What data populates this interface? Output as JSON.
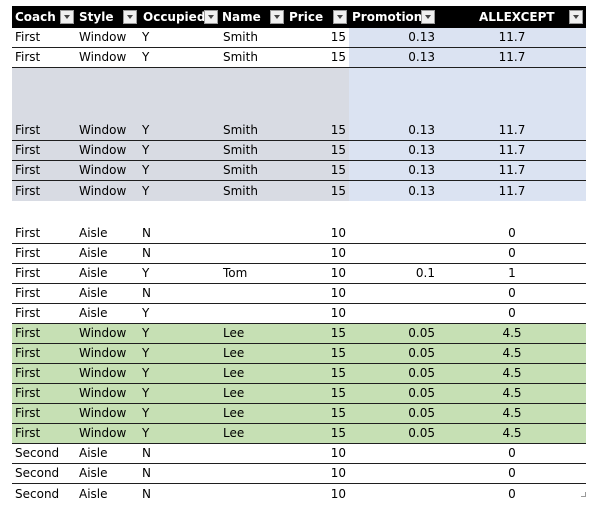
{
  "columns": [
    {
      "label": "Coach"
    },
    {
      "label": "Style"
    },
    {
      "label": "Occupied"
    },
    {
      "label": "Name"
    },
    {
      "label": "Price"
    },
    {
      "label": "Promotion"
    },
    {
      "label": "ALLEXCEPT"
    }
  ],
  "colors": {
    "header_bg": "#000000",
    "header_text": "#ffffff",
    "blue_fill": "#dbe3f2",
    "gray_fill": "#d8dbe3",
    "green_fill": "#c6e0b4",
    "white_fill": "#ffffff",
    "row_border": "#1f1f1f"
  },
  "rows": [
    {
      "fill": "blue",
      "cells": [
        "First",
        "Window",
        "Y",
        "Smith",
        "15",
        "0.13",
        "11.7"
      ]
    },
    {
      "fill": "blue",
      "cells": [
        "First",
        "Window",
        "Y",
        "Smith",
        "15",
        "0.13",
        "11.7"
      ]
    },
    {
      "fill": "blue",
      "cells": [
        "First",
        "Window",
        "Y",
        "Smith",
        "15",
        "0.13",
        "11.7"
      ]
    },
    {
      "fill": "blue",
      "cells": [
        "First",
        "Window",
        "Y",
        "Smith",
        "15",
        "0.13",
        "11.7"
      ]
    },
    {
      "fill": "blue",
      "cells": [
        "First",
        "Window",
        "Y",
        "Smith",
        "15",
        "0.13",
        "11.7"
      ]
    },
    {
      "fill": "blue",
      "cells": [
        "First",
        "Window",
        "Y",
        "Smith",
        "15",
        "0.13",
        "11.7"
      ]
    },
    {
      "fill": "white",
      "cells": [
        "First",
        "Aisle",
        "N",
        "",
        "10",
        "",
        "0"
      ]
    },
    {
      "fill": "white",
      "cells": [
        "First",
        "Aisle",
        "N",
        "",
        "10",
        "",
        "0"
      ]
    },
    {
      "fill": "white",
      "cells": [
        "First",
        "Aisle",
        "Y",
        "Tom",
        "10",
        "0.1",
        "1"
      ]
    },
    {
      "fill": "white",
      "cells": [
        "First",
        "Aisle",
        "N",
        "",
        "10",
        "",
        "0"
      ]
    },
    {
      "fill": "white",
      "cells": [
        "First",
        "Aisle",
        "Y",
        "",
        "10",
        "",
        "0"
      ]
    },
    {
      "fill": "green",
      "cells": [
        "First",
        "Window",
        "Y",
        "Lee",
        "15",
        "0.05",
        "4.5"
      ]
    },
    {
      "fill": "green",
      "cells": [
        "First",
        "Window",
        "Y",
        "Lee",
        "15",
        "0.05",
        "4.5"
      ]
    },
    {
      "fill": "green",
      "cells": [
        "First",
        "Window",
        "Y",
        "Lee",
        "15",
        "0.05",
        "4.5"
      ]
    },
    {
      "fill": "green",
      "cells": [
        "First",
        "Window",
        "Y",
        "Lee",
        "15",
        "0.05",
        "4.5"
      ]
    },
    {
      "fill": "green",
      "cells": [
        "First",
        "Window",
        "Y",
        "Lee",
        "15",
        "0.05",
        "4.5"
      ]
    },
    {
      "fill": "green",
      "cells": [
        "First",
        "Window",
        "Y",
        "Lee",
        "15",
        "0.05",
        "4.5"
      ]
    },
    {
      "fill": "white",
      "cells": [
        "Second",
        "Aisle",
        "N",
        "",
        "10",
        "",
        "0"
      ]
    },
    {
      "fill": "white",
      "cells": [
        "Second",
        "Aisle",
        "N",
        "",
        "10",
        "",
        "0"
      ]
    },
    {
      "fill": "white",
      "cells": [
        "Second",
        "Aisle",
        "N",
        "",
        "10",
        "",
        "0"
      ]
    }
  ]
}
